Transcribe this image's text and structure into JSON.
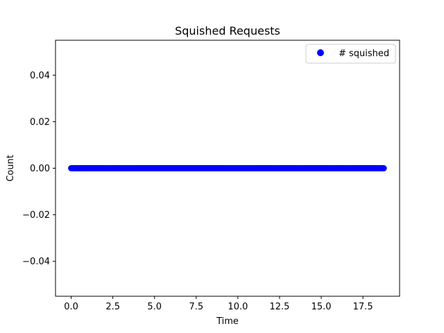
{
  "chart_data": {
    "type": "scatter",
    "title": "Squished Requests",
    "xlabel": "Time",
    "ylabel": "Count",
    "xlim": [
      -0.94,
      19.7
    ],
    "ylim": [
      -0.055,
      0.055
    ],
    "xticks": [
      0.0,
      2.5,
      5.0,
      7.5,
      10.0,
      12.5,
      15.0,
      17.5
    ],
    "xtick_labels": [
      "0.0",
      "2.5",
      "5.0",
      "7.5",
      "10.0",
      "12.5",
      "15.0",
      "17.5"
    ],
    "yticks": [
      -0.04,
      -0.02,
      0.0,
      0.02,
      0.04
    ],
    "ytick_labels": [
      "−0.04",
      "−0.02",
      "0.00",
      "0.02",
      "0.04"
    ],
    "grid": false,
    "legend_position": "top-right",
    "series": [
      {
        "name": "# squished",
        "color": "#0000ff",
        "marker": "circle",
        "x_start": 0.0,
        "x_end": 18.75,
        "x_step": 0.05,
        "y_constant": 0
      }
    ]
  }
}
